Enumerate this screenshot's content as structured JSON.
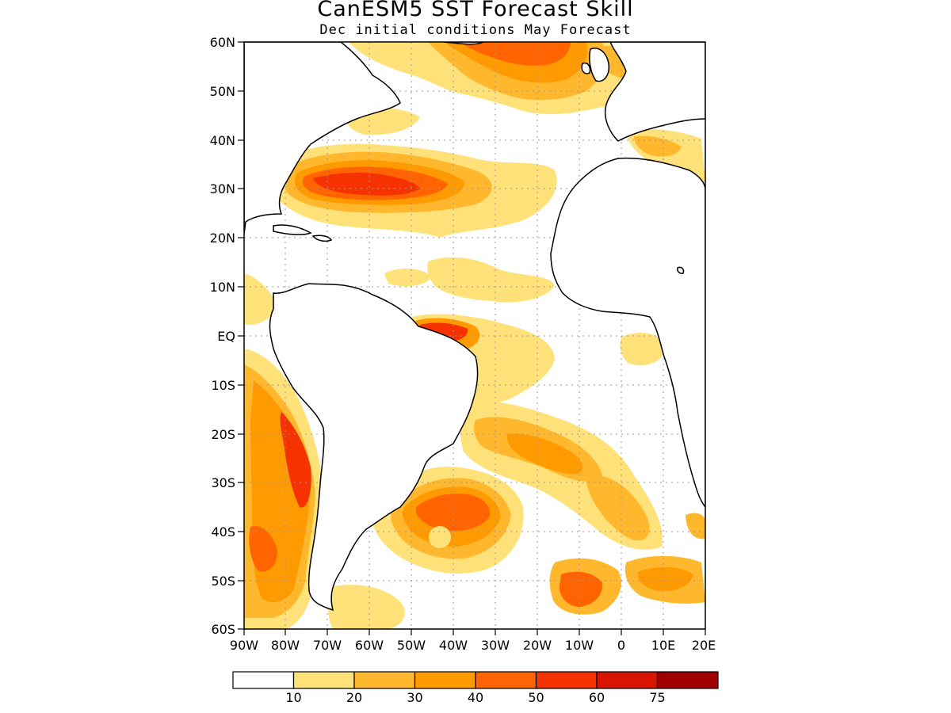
{
  "title": "CanESM5 SST Forecast Skill",
  "subtitle": "Dec initial conditions  May Forecast",
  "map": {
    "lat_labels": [
      "60N",
      "50N",
      "40N",
      "30N",
      "20N",
      "10N",
      "EQ",
      "10S",
      "20S",
      "30S",
      "40S",
      "50S",
      "60S"
    ],
    "lon_labels": [
      "90W",
      "80W",
      "70W",
      "60W",
      "50W",
      "40W",
      "30W",
      "20W",
      "10W",
      "0",
      "10E",
      "20E"
    ],
    "region": {
      "lon_min": -90,
      "lon_max": 20,
      "lat_min": -60,
      "lat_max": 60
    },
    "grid_lines": "dotted"
  },
  "colorbar": {
    "colors": [
      "#ffffff",
      "#ffe17a",
      "#ffb82e",
      "#ff9a00",
      "#ff6400",
      "#f53200",
      "#d81600",
      "#a00000"
    ],
    "labels": [
      "10",
      "20",
      "30",
      "40",
      "50",
      "60",
      "75"
    ]
  }
}
